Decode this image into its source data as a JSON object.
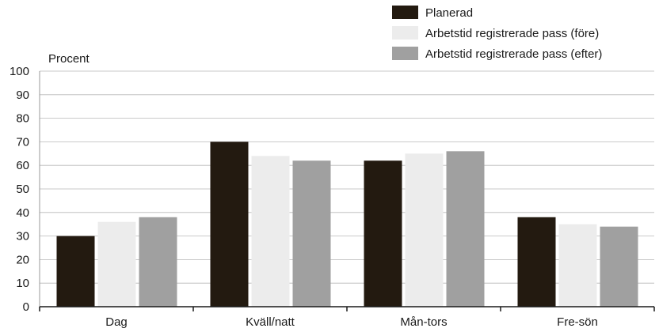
{
  "chart_data": {
    "type": "bar",
    "ylabel": "Procent",
    "xlabel": "",
    "ylim": [
      0,
      100
    ],
    "yticks": [
      0,
      10,
      20,
      30,
      40,
      50,
      60,
      70,
      80,
      90,
      100
    ],
    "grid": true,
    "legend_position": "top-right",
    "categories": [
      "Dag",
      "Kväll/natt",
      "Mån-tors",
      "Fre-sön"
    ],
    "series": [
      {
        "name": "Planerad",
        "color": "#231a10",
        "values": [
          30,
          70,
          62,
          38
        ]
      },
      {
        "name": "Arbetstid registrerade pass (före)",
        "color": "#ececec",
        "values": [
          36,
          64,
          65,
          35
        ]
      },
      {
        "name": "Arbetstid registrerade pass (efter)",
        "color": "#a0a0a0",
        "values": [
          38,
          62,
          66,
          34
        ]
      }
    ]
  }
}
